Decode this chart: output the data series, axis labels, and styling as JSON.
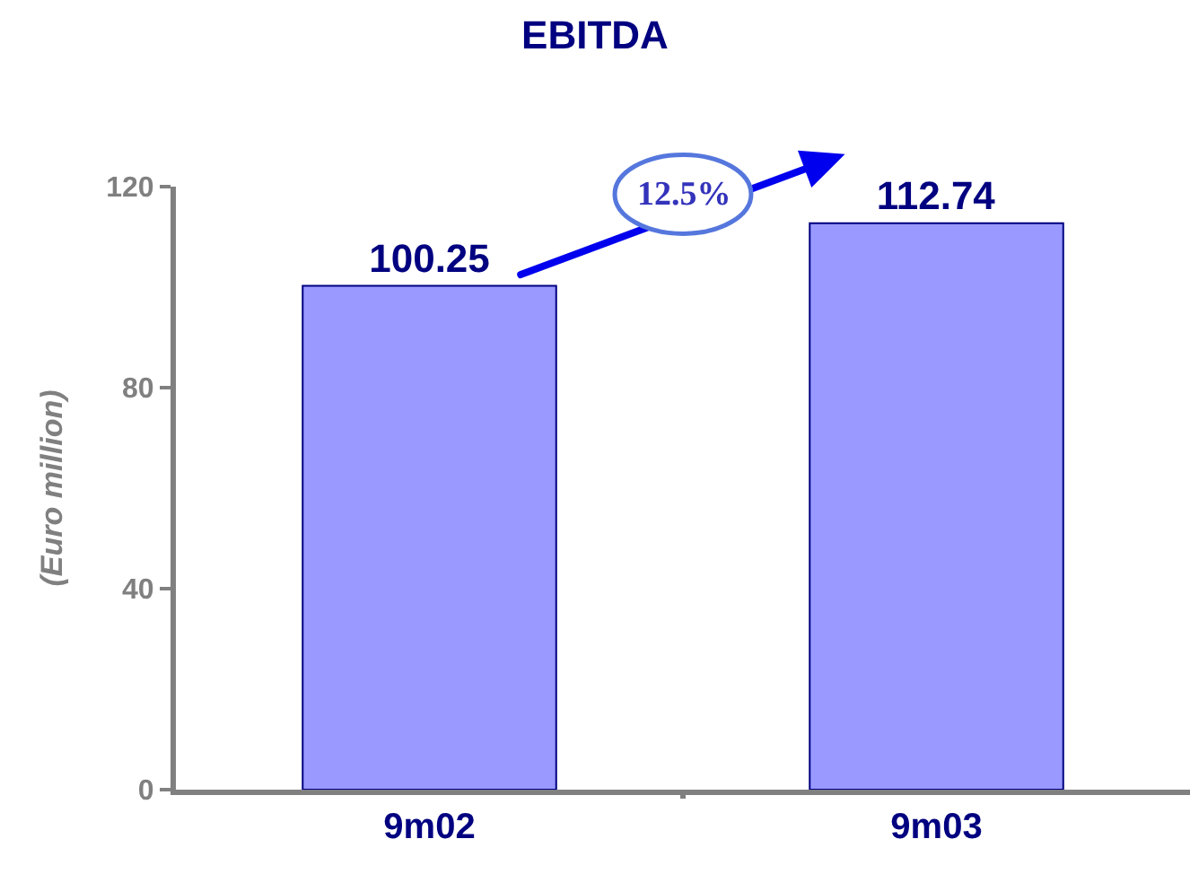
{
  "chart_data": {
    "type": "bar",
    "title": "EBITDA",
    "ylabel": "(Euro million)",
    "categories": [
      "9m02",
      "9m03"
    ],
    "values": [
      100.25,
      112.74
    ],
    "color": "#9999ff",
    "ylim": [
      0,
      120
    ],
    "yticks": [
      0,
      40,
      80,
      120
    ],
    "grid": false,
    "data_labels": true,
    "annotations": [
      "12.5%"
    ]
  }
}
